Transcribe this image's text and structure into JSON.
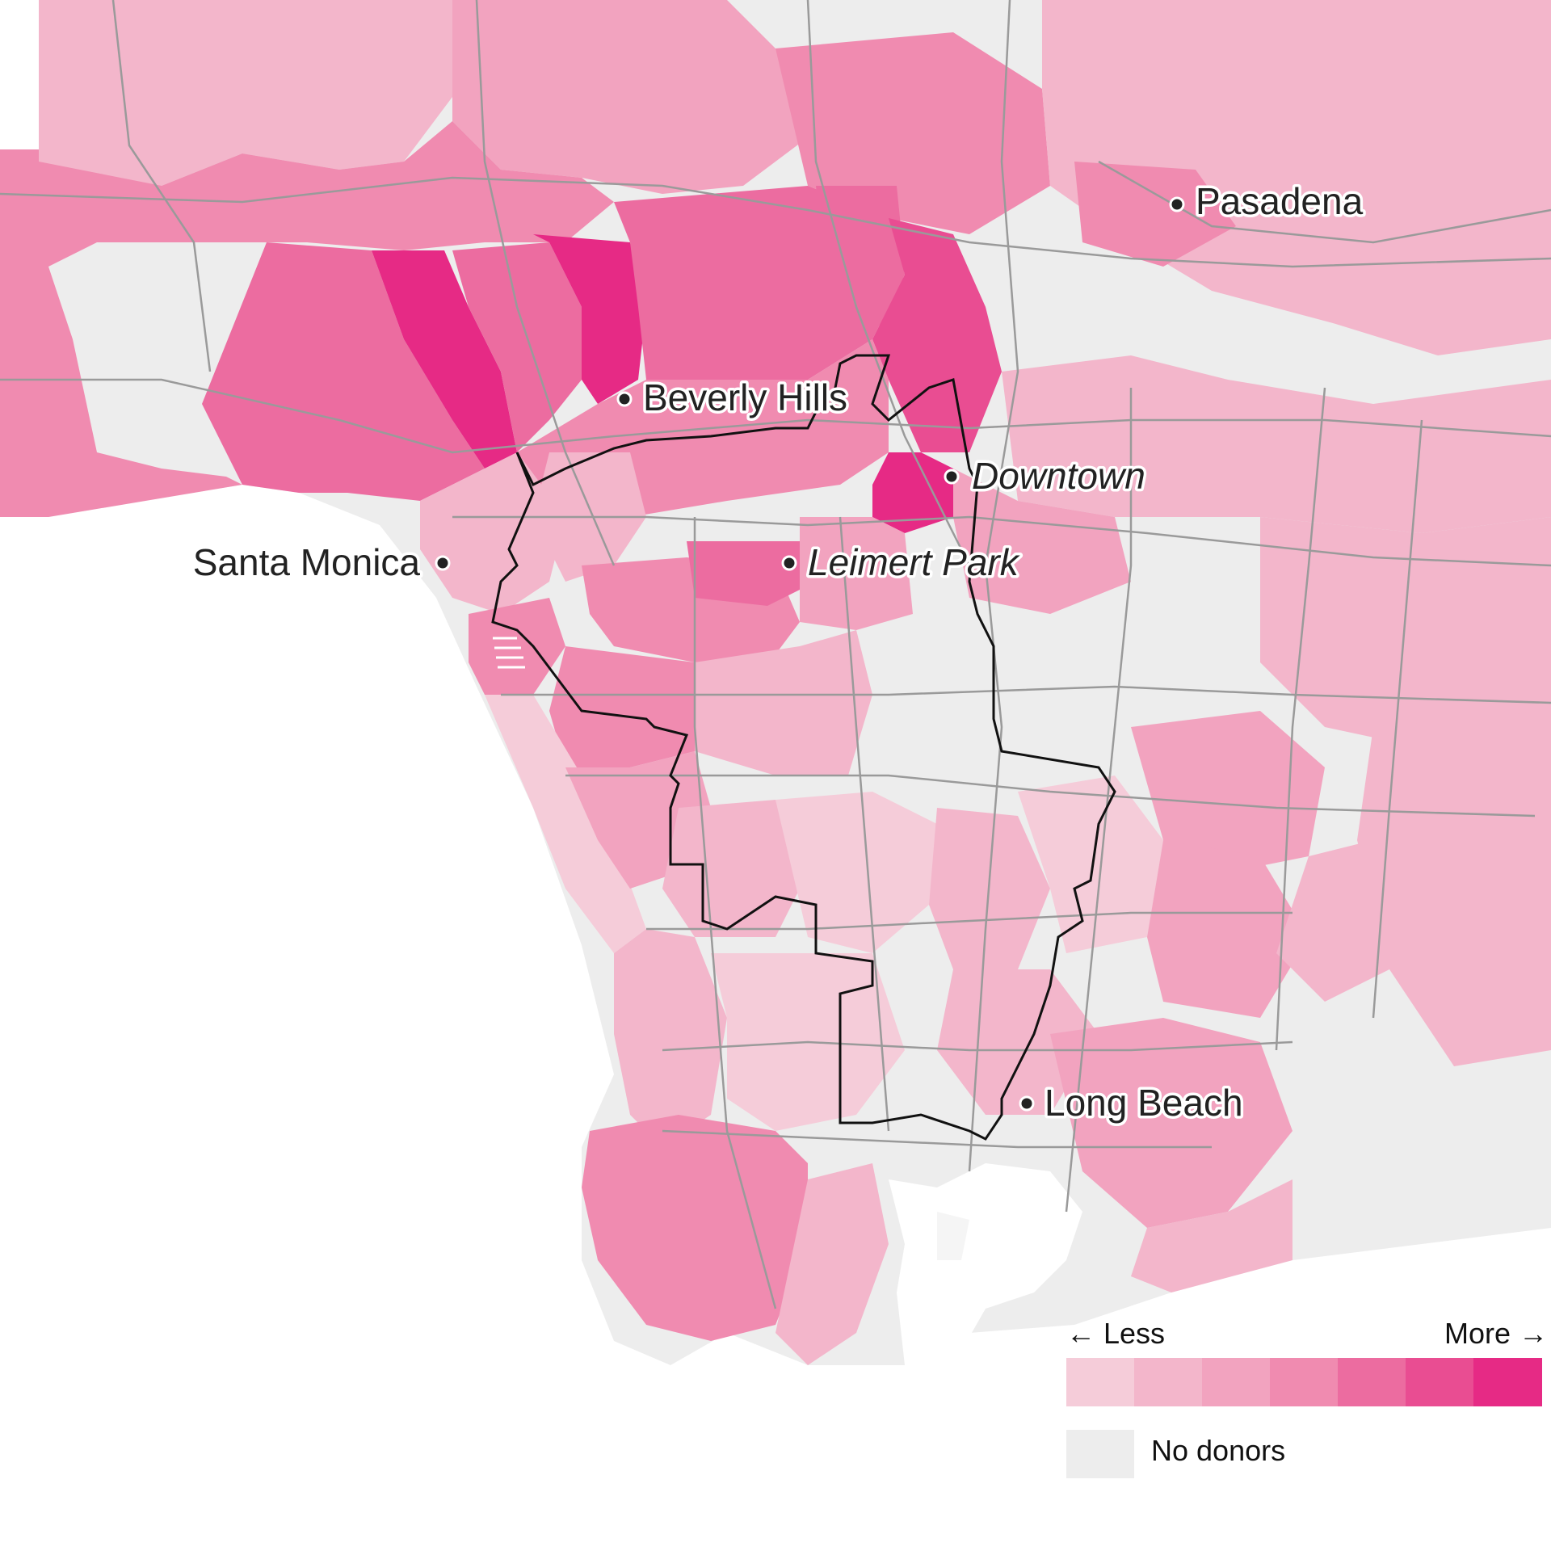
{
  "places": [
    {
      "name": "Pasadena",
      "italic": false
    },
    {
      "name": "Beverly Hills",
      "italic": false
    },
    {
      "name": "Downtown",
      "italic": true
    },
    {
      "name": "Leimert Park",
      "italic": true
    },
    {
      "name": "Santa Monica",
      "italic": false
    },
    {
      "name": "Long Beach",
      "italic": false
    }
  ],
  "legend": {
    "less_label": "← Less",
    "more_label": "More →",
    "scale_colors": [
      "#f5ccd9",
      "#f3b6cb",
      "#f2a3bf",
      "#f08bb0",
      "#ec6ca0",
      "#e94d92",
      "#e62a85"
    ],
    "no_data_label": "No donors",
    "no_data_color": "#ededed"
  },
  "colors": {
    "water": "#ffffff",
    "no_data": "#ededed",
    "road": "#9a9a9a",
    "boundary": "#111111"
  }
}
